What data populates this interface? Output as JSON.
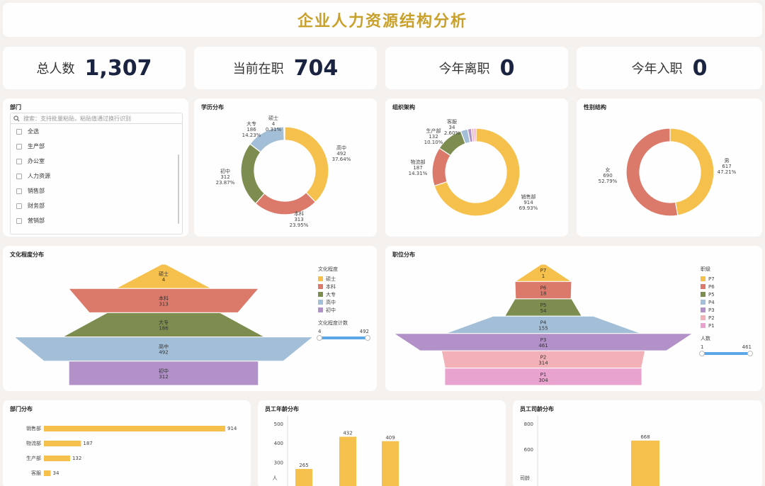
{
  "header": {
    "title": "企业人力资源结构分析"
  },
  "kpis": [
    {
      "label": "总人数",
      "value": "1,307"
    },
    {
      "label": "当前在职",
      "value": "704"
    },
    {
      "label": "今年离职",
      "value": "0"
    },
    {
      "label": "今年入职",
      "value": "0"
    }
  ],
  "dept_filter": {
    "title": "部门",
    "search_placeholder": "搜索：支持批量粘贴，粘贴值通过换行识别",
    "items": [
      "全选",
      "生产部",
      "办公室",
      "人力资源",
      "销售部",
      "财务部",
      "营销部"
    ]
  },
  "colors": {
    "yellow": "#f6c04d",
    "red": "#db7a6a",
    "green": "#7d8c4f",
    "blue": "#a3bfd8",
    "purple": "#b191c7",
    "pink": "#f2b1b6",
    "magenta": "#e9a3cf",
    "lightblue": "#8fb9dd"
  },
  "chart_data": [
    {
      "type": "pie",
      "title": "学历分布",
      "slices": [
        {
          "name": "高中",
          "value": 492,
          "pct": "37.64%",
          "color": "#f6c04d"
        },
        {
          "name": "本科",
          "value": 313,
          "pct": "23.95%",
          "color": "#db7a6a"
        },
        {
          "name": "初中",
          "value": 312,
          "pct": "23.87%",
          "color": "#7d8c4f"
        },
        {
          "name": "大专",
          "value": 186,
          "pct": "14.23%",
          "color": "#a3bfd8"
        },
        {
          "name": "硕士",
          "value": 4,
          "pct": "0.31%",
          "color": "#b191c7"
        }
      ]
    },
    {
      "type": "pie",
      "title": "组织架构",
      "slices": [
        {
          "name": "销售部",
          "value": 914,
          "pct": "69.93%",
          "color": "#f6c04d"
        },
        {
          "name": "物流部",
          "value": 187,
          "pct": "14.31%",
          "color": "#db7a6a"
        },
        {
          "name": "生产部",
          "value": 132,
          "pct": "10.10%",
          "color": "#7d8c4f"
        },
        {
          "name": "客服",
          "value": 34,
          "pct": "2.60%",
          "color": "#a3bfd8"
        },
        {
          "name": "",
          "value": 18,
          "pct": "",
          "color": "#b191c7"
        },
        {
          "name": "",
          "value": 12,
          "pct": "",
          "color": "#f2b1b6"
        },
        {
          "name": "",
          "value": 10,
          "pct": "",
          "color": "#e9a3cf"
        }
      ]
    },
    {
      "type": "pie",
      "title": "性别结构",
      "slices": [
        {
          "name": "男",
          "value": 617,
          "pct": "47.21%",
          "color": "#f6c04d"
        },
        {
          "name": "女",
          "value": 690,
          "pct": "52.79%",
          "color": "#db7a6a"
        }
      ]
    },
    {
      "type": "funnel",
      "title": "文化程度分布",
      "legend_title": "文化程度",
      "range_title": "文化程度计数",
      "range": [
        4,
        492
      ],
      "stages": [
        {
          "name": "硕士",
          "value": 4,
          "color": "#f6c04d"
        },
        {
          "name": "本科",
          "value": 313,
          "color": "#db7a6a"
        },
        {
          "name": "大专",
          "value": 186,
          "color": "#7d8c4f"
        },
        {
          "name": "高中",
          "value": 492,
          "color": "#a3bfd8"
        },
        {
          "name": "初中",
          "value": 312,
          "color": "#b191c7"
        }
      ]
    },
    {
      "type": "funnel",
      "title": "职位分布",
      "legend_title": "职级",
      "range_title": "人数",
      "range": [
        1,
        461
      ],
      "stages": [
        {
          "name": "P7",
          "value": 1,
          "color": "#f6c04d"
        },
        {
          "name": "P6",
          "value": 18,
          "color": "#db7a6a"
        },
        {
          "name": "P5",
          "value": 54,
          "color": "#7d8c4f"
        },
        {
          "name": "P4",
          "value": 155,
          "color": "#a3bfd8"
        },
        {
          "name": "P3",
          "value": 461,
          "color": "#b191c7"
        },
        {
          "name": "P2",
          "value": 314,
          "color": "#f2b1b6"
        },
        {
          "name": "P1",
          "value": 304,
          "color": "#e9a3cf"
        }
      ]
    },
    {
      "type": "bar",
      "orientation": "horizontal",
      "title": "部门分布",
      "categories": [
        "销售部",
        "物流部",
        "生产部",
        "客服"
      ],
      "values": [
        914,
        187,
        132,
        34
      ],
      "xlim": [
        0,
        914
      ]
    },
    {
      "type": "bar",
      "title": "员工年龄分布",
      "values": [
        265,
        432,
        409
      ],
      "yticks": [
        300,
        400,
        500
      ],
      "ylim": [
        240,
        500
      ],
      "ylabel": "人"
    },
    {
      "type": "bar",
      "title": "员工司龄分布",
      "values": [
        668
      ],
      "yticks": [
        600,
        800
      ],
      "ylim": [
        420,
        800
      ],
      "ylabel": "司龄"
    }
  ]
}
